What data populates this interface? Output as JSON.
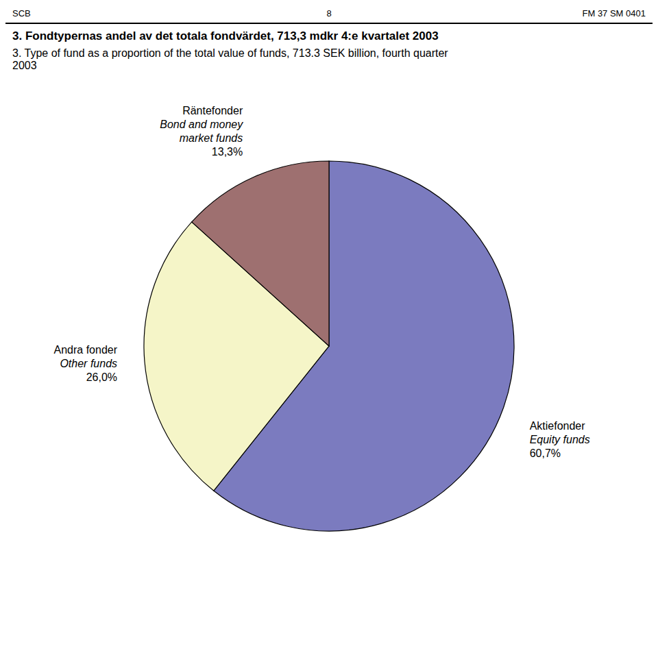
{
  "chart_data": {
    "type": "pie",
    "title": "3. Fondtypernas andel av det totala fondvärdet, 713,3 mdkr 4:e kvartalet 2003",
    "subtitle": "3. Type of fund as a proportion of the total value of funds, 713.3 SEK billion, fourth quarter\n2003",
    "annotations": [
      "SCB",
      "8",
      "FM 37 SM 0401"
    ],
    "categories": [
      "Aktiefonder",
      "Andra fonder",
      "Räntefonder"
    ],
    "labels_en": [
      "Equity funds",
      "Other funds",
      "Bond and money\nmarket funds"
    ],
    "values": [
      60.7,
      26.0,
      13.3
    ],
    "value_labels": [
      "60,7%",
      "26,0%",
      "13,3%"
    ],
    "colors": [
      "#7b7bbf",
      "#f5f5c8",
      "#9e7070"
    ],
    "data_labels": true
  }
}
